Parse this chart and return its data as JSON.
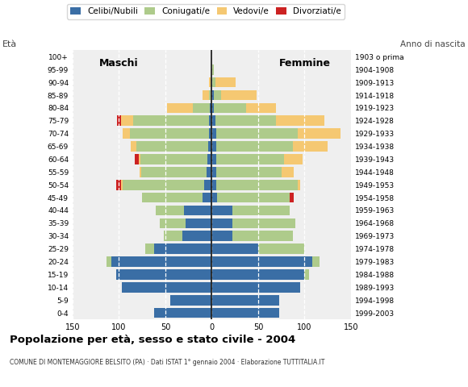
{
  "age_groups": [
    "0-4",
    "5-9",
    "10-14",
    "15-19",
    "20-24",
    "25-29",
    "30-34",
    "35-39",
    "40-44",
    "45-49",
    "50-54",
    "55-59",
    "60-64",
    "65-69",
    "70-74",
    "75-79",
    "80-84",
    "85-89",
    "90-94",
    "95-99",
    "100+"
  ],
  "birth_years": [
    "1999-2003",
    "1994-1998",
    "1989-1993",
    "1984-1988",
    "1979-1983",
    "1974-1978",
    "1969-1973",
    "1964-1968",
    "1959-1963",
    "1954-1958",
    "1949-1953",
    "1944-1948",
    "1939-1943",
    "1934-1938",
    "1929-1933",
    "1924-1928",
    "1919-1923",
    "1914-1918",
    "1909-1913",
    "1904-1908",
    "1903 o prima"
  ],
  "males": {
    "celibe": [
      62,
      45,
      97,
      103,
      108,
      62,
      32,
      28,
      30,
      10,
      8,
      6,
      5,
      4,
      3,
      3,
      2,
      0,
      0,
      0,
      0
    ],
    "coniugato": [
      0,
      0,
      0,
      0,
      5,
      10,
      20,
      28,
      30,
      65,
      88,
      70,
      72,
      77,
      85,
      82,
      18,
      3,
      1,
      0,
      0
    ],
    "vedovo": [
      0,
      0,
      0,
      0,
      0,
      0,
      0,
      0,
      0,
      0,
      2,
      2,
      2,
      6,
      8,
      13,
      28,
      7,
      2,
      0,
      0
    ],
    "divorziato": [
      0,
      0,
      0,
      0,
      0,
      0,
      0,
      0,
      0,
      0,
      5,
      0,
      4,
      0,
      0,
      4,
      0,
      0,
      0,
      0,
      0
    ]
  },
  "females": {
    "nubile": [
      73,
      73,
      95,
      100,
      108,
      50,
      22,
      22,
      22,
      6,
      5,
      5,
      5,
      5,
      5,
      4,
      2,
      2,
      0,
      0,
      0
    ],
    "coniugata": [
      0,
      0,
      0,
      5,
      8,
      50,
      65,
      68,
      62,
      78,
      88,
      70,
      73,
      82,
      88,
      65,
      35,
      8,
      4,
      2,
      0
    ],
    "vedova": [
      0,
      0,
      0,
      0,
      0,
      0,
      0,
      0,
      0,
      0,
      2,
      13,
      20,
      38,
      46,
      52,
      32,
      38,
      22,
      0,
      0
    ],
    "divorziata": [
      0,
      0,
      0,
      0,
      0,
      0,
      0,
      0,
      0,
      4,
      0,
      0,
      0,
      0,
      0,
      0,
      0,
      0,
      0,
      0,
      0
    ]
  },
  "colors": {
    "celibe": "#3A6EA5",
    "coniugato": "#AECB8B",
    "vedovo": "#F5C872",
    "divorziato": "#CC2222"
  },
  "plot_bg": "#efefef",
  "bg_color": "#ffffff",
  "title": "Popolazione per età, sesso e stato civile - 2004",
  "subtitle": "COMUNE DI MONTEMAGGIORE BELSITO (PA) · Dati ISTAT 1° gennaio 2004 · Elaborazione TUTTITALIA.IT",
  "legend_labels": [
    "Celibi/Nubili",
    "Coniugati/e",
    "Vedovi/e",
    "Divorziati/e"
  ],
  "xlim": 150
}
